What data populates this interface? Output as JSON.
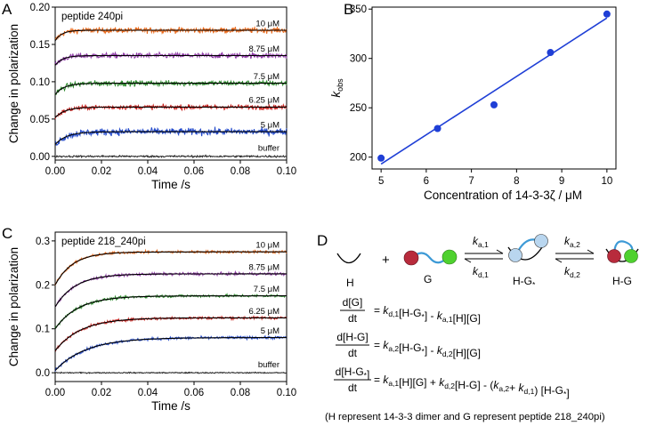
{
  "panel_letters": {
    "a": "A",
    "b": "B",
    "c": "C",
    "d": "D"
  },
  "chart_data": [
    {
      "panel": "A",
      "type": "line",
      "title": "peptide 240pi",
      "xlabel": "Time /s",
      "ylabel": "Change in polarization",
      "xlim": [
        0,
        0.1
      ],
      "ylim": [
        -0.005,
        0.2
      ],
      "xticks": [
        "0.00",
        "0.02",
        "0.04",
        "0.06",
        "0.08",
        "0.10"
      ],
      "xtick_values": [
        0,
        0.02,
        0.04,
        0.06,
        0.08,
        0.1
      ],
      "yticks": [
        "0.00",
        "0.05",
        "0.10",
        "0.15",
        "0.20"
      ],
      "ytick_values": [
        0,
        0.05,
        0.1,
        0.15,
        0.2
      ],
      "series": [
        {
          "name": "10 μM",
          "color": "#ea6a1c",
          "start": 0.155,
          "plateau": 0.169,
          "rate": 345,
          "noise": 0.0035
        },
        {
          "name": "8.75 μM",
          "color": "#8e3aa6",
          "start": 0.122,
          "plateau": 0.135,
          "rate": 306,
          "noise": 0.0035
        },
        {
          "name": "7.5 μM",
          "color": "#2e8b2e",
          "start": 0.083,
          "plateau": 0.098,
          "rate": 253,
          "noise": 0.0035
        },
        {
          "name": "6.25 μM",
          "color": "#c8221e",
          "start": 0.052,
          "plateau": 0.066,
          "rate": 229,
          "noise": 0.003
        },
        {
          "name": "5 μM",
          "color": "#2148c9",
          "start": 0.016,
          "plateau": 0.033,
          "rate": 199,
          "noise": 0.0045
        },
        {
          "name": "buffer",
          "color": "#222222",
          "start": 0.0,
          "plateau": 0.0,
          "rate": 0,
          "noise": 0.0012
        }
      ]
    },
    {
      "panel": "B",
      "type": "scatter",
      "xlabel": "Concentration of 14-3-3ζ / μM",
      "ylabel": "k",
      "ylabel_sub": "obs",
      "xlim": [
        4.8,
        10.2
      ],
      "ylim": [
        188,
        352
      ],
      "xticks": [
        "5",
        "6",
        "7",
        "8",
        "9",
        "10"
      ],
      "xtick_values": [
        5,
        6,
        7,
        8,
        9,
        10
      ],
      "yticks": [
        "200",
        "250",
        "300",
        "350"
      ],
      "ytick_values": [
        200,
        250,
        300,
        350
      ],
      "x": [
        5.0,
        6.25,
        7.5,
        8.75,
        10.0
      ],
      "y": [
        199,
        229,
        253,
        306,
        345
      ],
      "fit": {
        "x": [
          5.0,
          10.0
        ],
        "y": [
          193,
          341
        ]
      },
      "color": "#1f3fd6"
    },
    {
      "panel": "C",
      "type": "line",
      "title": "peptide 218_240pi",
      "xlabel": "Time /s",
      "ylabel": "Change in polarization",
      "xlim": [
        0,
        0.1
      ],
      "ylim": [
        -0.02,
        0.32
      ],
      "xticks": [
        "0.00",
        "0.02",
        "0.04",
        "0.06",
        "0.08",
        "0.10"
      ],
      "xtick_values": [
        0,
        0.02,
        0.04,
        0.06,
        0.08,
        0.1
      ],
      "yticks": [
        "0.0",
        "0.1",
        "0.2",
        "0.3"
      ],
      "ytick_values": [
        0,
        0.1,
        0.2,
        0.3
      ],
      "series": [
        {
          "name": "10 μM",
          "color": "#ea6a1c",
          "start": 0.2,
          "plateau": 0.275,
          "rate": 130,
          "noise": 0.003
        },
        {
          "name": "8.75 μM",
          "color": "#8e3aa6",
          "start": 0.15,
          "plateau": 0.225,
          "rate": 115,
          "noise": 0.003
        },
        {
          "name": "7.5 μM",
          "color": "#2e8b2e",
          "start": 0.1,
          "plateau": 0.175,
          "rate": 100,
          "noise": 0.003
        },
        {
          "name": "6.25 μM",
          "color": "#c8221e",
          "start": 0.05,
          "plateau": 0.125,
          "rate": 90,
          "noise": 0.003
        },
        {
          "name": "5 μM",
          "color": "#2148c9",
          "start": 0.005,
          "plateau": 0.08,
          "rate": 75,
          "noise": 0.003
        },
        {
          "name": "buffer",
          "color": "#222222",
          "start": 0.0,
          "plateau": 0.0,
          "rate": 0,
          "noise": 0.0012
        }
      ]
    }
  ],
  "scheme": {
    "labels": {
      "h": "H",
      "g": "G",
      "hg_star": "H-G",
      "hg_star_sub": "*",
      "hg": "H-G",
      "plus": "+"
    },
    "rates": {
      "ka1": "k",
      "ka1_sub": "a,1",
      "kd1": "k",
      "kd1_sub": "d,1",
      "ka2": "k",
      "ka2_sub": "a,2",
      "kd2": "k",
      "kd2_sub": "d,2"
    },
    "equations": [
      {
        "num": "d[G]",
        "den": "dt",
        "rhs": "= k_{d,1}[H-G_*] - k_{a,1}[H][G]"
      },
      {
        "num": "d[H-G]",
        "den": "dt",
        "rhs": "= k_{a,2}[H-G_*] - k_{d,2}[H][G]"
      },
      {
        "num": "d[H-G_*]",
        "den": "dt",
        "rhs": "= k_{a,1}[H][G] + k_{d,2}[H-G] - (k_{a,2}+ k_{d,1}) [H-G_*]"
      }
    ],
    "note": "(H represent 14-3-3 dimer and G represent peptide 218_240pi)"
  },
  "colors": {
    "fit": "#000000",
    "axis": "#000000",
    "ball_red": "#b82b3c",
    "ball_green": "#4fd12f",
    "chain": "#3d9ad6",
    "bubble": "#b9d6ef"
  }
}
